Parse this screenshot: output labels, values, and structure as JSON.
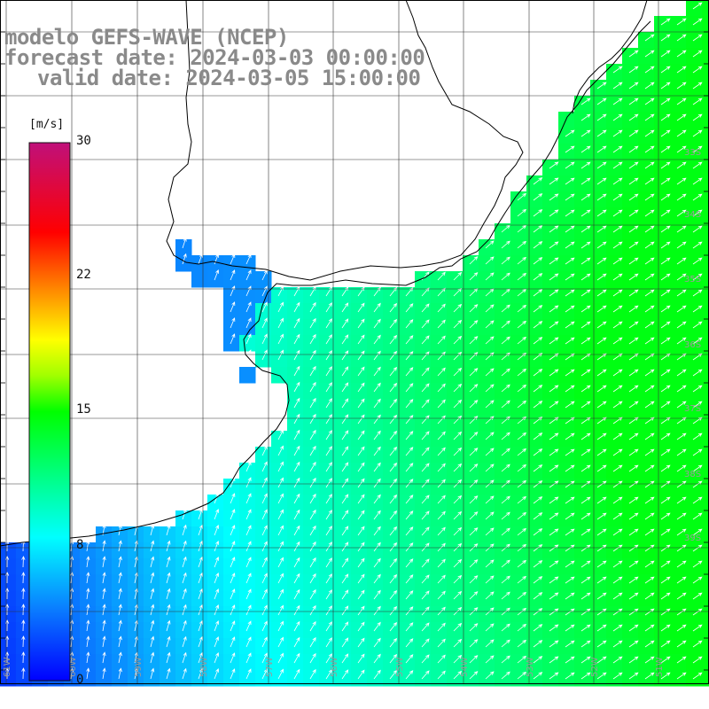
{
  "title": {
    "line1": "modelo GEFS-WAVE (NCEP)",
    "line2": "forecast date: 2024-03-03 00:00:00",
    "line3": "valid date: 2024-03-05 15:00:00"
  },
  "colorbar": {
    "unit": "[m/s]",
    "min": 0,
    "max": 30,
    "ticks": [
      "30",
      "22",
      "15",
      "8",
      "0"
    ],
    "tick_values": [
      30,
      22,
      15,
      8,
      0
    ],
    "stops": [
      {
        "v": 0,
        "c": "#0000ff"
      },
      {
        "v": 4,
        "c": "#0a7dff"
      },
      {
        "v": 8,
        "c": "#00ffff"
      },
      {
        "v": 11.5,
        "c": "#00ff80"
      },
      {
        "v": 15,
        "c": "#00ff00"
      },
      {
        "v": 17,
        "c": "#a0ff00"
      },
      {
        "v": 19,
        "c": "#ffff00"
      },
      {
        "v": 22,
        "c": "#ff8000"
      },
      {
        "v": 25,
        "c": "#ff0000"
      },
      {
        "v": 30,
        "c": "#c0107a"
      }
    ]
  },
  "map": {
    "lon_labels": [
      "61W",
      "60W",
      "59W",
      "58W",
      "57W",
      "56W",
      "55W",
      "54W",
      "53W",
      "52W",
      "51W"
    ],
    "lat_labels": [
      "33S",
      "34S",
      "35S",
      "36S",
      "37S",
      "38S",
      "39S"
    ],
    "land_color": "#ffffff",
    "grid_color": "#333333",
    "coast_color": "#000000",
    "arrow_color": "#ffffff"
  }
}
